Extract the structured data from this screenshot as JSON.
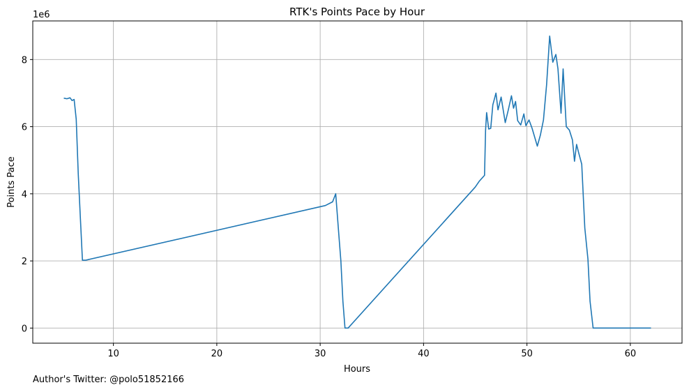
{
  "footer_text": "Author's Twitter: @polo51852166",
  "chart_data": {
    "type": "line",
    "title": "RTK's Points Pace by Hour",
    "xlabel": "Hours",
    "ylabel": "Points Pace",
    "y_scale_label": "1e6",
    "xlim": [
      2.2,
      65
    ],
    "ylim": [
      -0.45,
      9.15
    ],
    "xticks": [
      10,
      20,
      30,
      40,
      50,
      60
    ],
    "yticks": [
      0,
      2,
      4,
      6,
      8
    ],
    "grid": true,
    "color": "#1f77b4",
    "series": [
      {
        "x": [
          5.2,
          5.5,
          5.8,
          6.0,
          6.2,
          6.4,
          6.6,
          6.8,
          7.0,
          7.3,
          30.5,
          31.2,
          31.5,
          31.8,
          32.0,
          32.2,
          32.4,
          32.7,
          45.0,
          45.4,
          45.9,
          46.0,
          46.1,
          46.3,
          46.5,
          46.7,
          47.0,
          47.2,
          47.5,
          47.9,
          48.2,
          48.5,
          48.7,
          48.9,
          49.1,
          49.4,
          49.7,
          49.9,
          50.2,
          50.5,
          51.0,
          51.3,
          51.6,
          51.9,
          52.2,
          52.5,
          52.8,
          53.0,
          53.3,
          53.5,
          53.8,
          54.1,
          54.4,
          54.6,
          54.8,
          55.0,
          55.3,
          55.6,
          55.9,
          56.1,
          56.4,
          62.0
        ],
        "values": [
          6.85,
          6.83,
          6.86,
          6.78,
          6.81,
          6.22,
          4.6,
          3.3,
          2.02,
          2.02,
          3.65,
          3.76,
          4.0,
          2.8,
          2.0,
          0.8,
          0.0,
          0.0,
          4.2,
          4.38,
          4.55,
          5.9,
          6.42,
          5.93,
          5.95,
          6.65,
          7.0,
          6.5,
          6.88,
          6.12,
          6.5,
          6.92,
          6.55,
          6.75,
          6.18,
          6.05,
          6.38,
          6.03,
          6.2,
          5.95,
          5.42,
          5.75,
          6.2,
          7.25,
          8.7,
          7.92,
          8.15,
          7.72,
          6.4,
          7.72,
          6.0,
          5.9,
          5.6,
          4.97,
          5.47,
          5.22,
          4.88,
          2.98,
          2.05,
          0.8,
          0.0,
          0.0
        ]
      }
    ]
  }
}
